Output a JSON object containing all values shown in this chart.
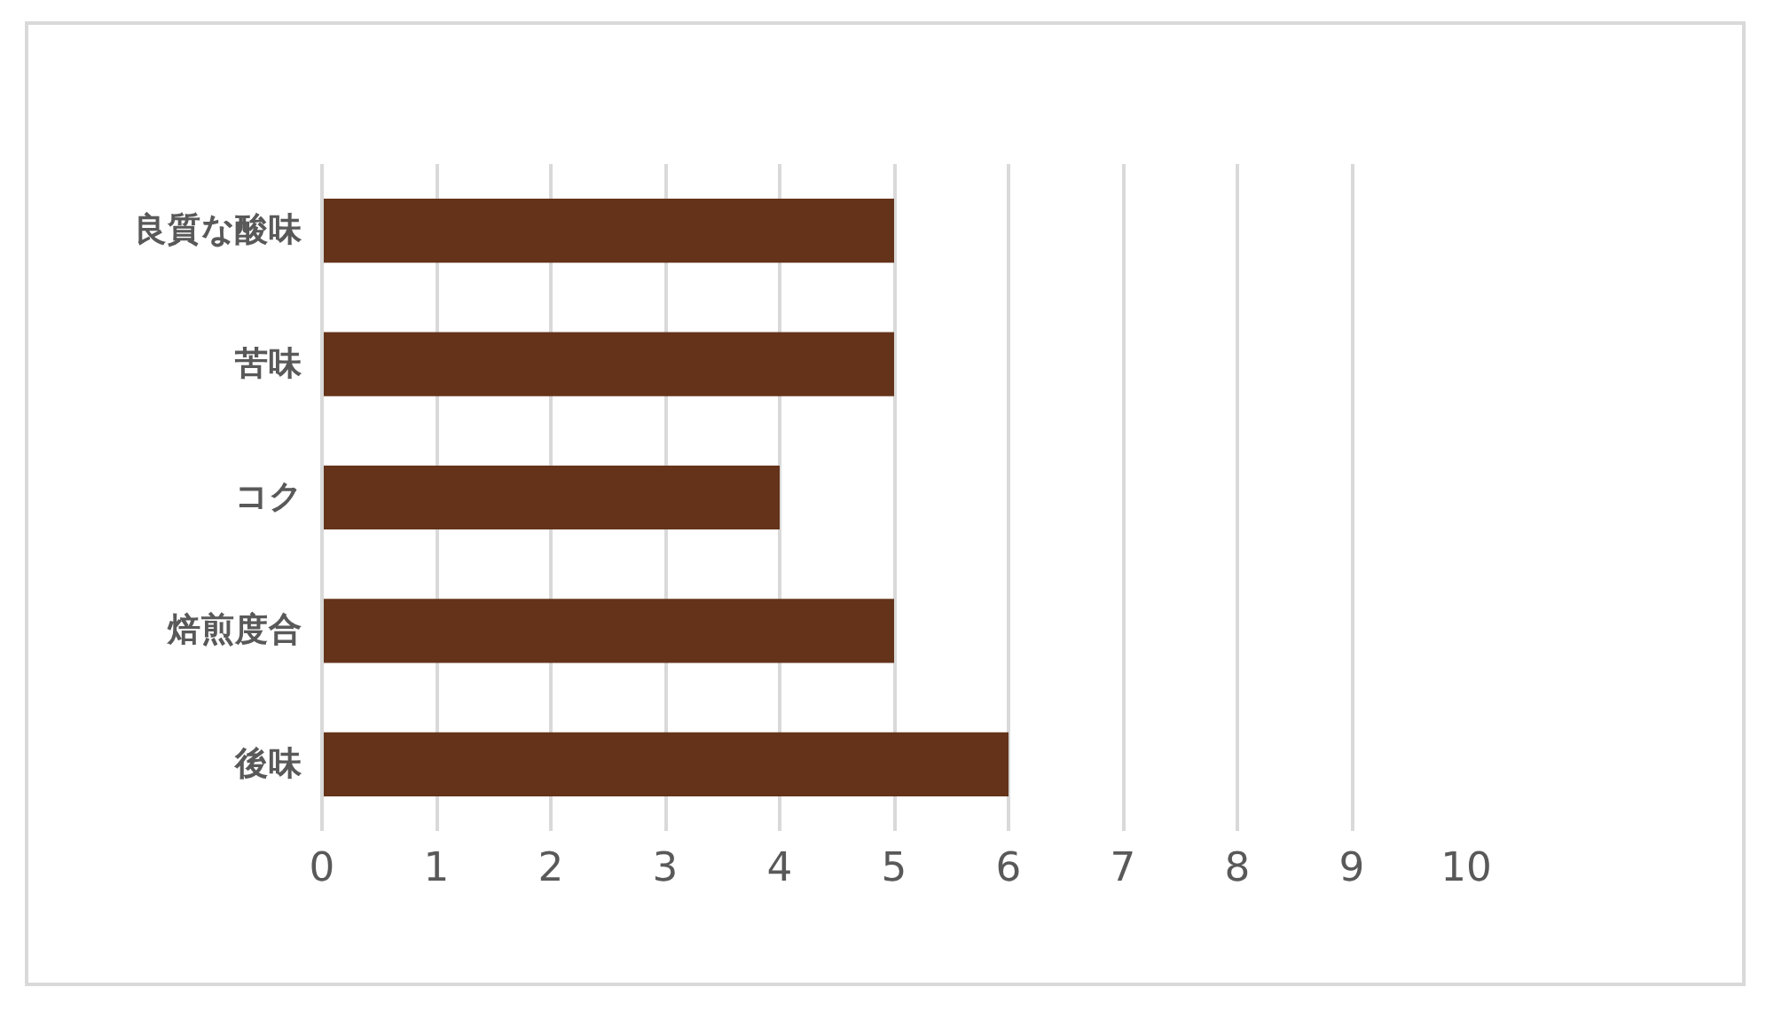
{
  "chart_data": {
    "type": "bar",
    "orientation": "horizontal",
    "categories": [
      "良質な酸味",
      "苦味",
      "コク",
      "焙煎度合",
      "後味"
    ],
    "values": [
      5,
      5,
      4,
      5,
      6
    ],
    "color": "#64331a",
    "xlim": [
      0,
      10
    ],
    "xticks": [
      0,
      1,
      2,
      3,
      4,
      5,
      6,
      7,
      8,
      9,
      10
    ],
    "grid": "x"
  }
}
